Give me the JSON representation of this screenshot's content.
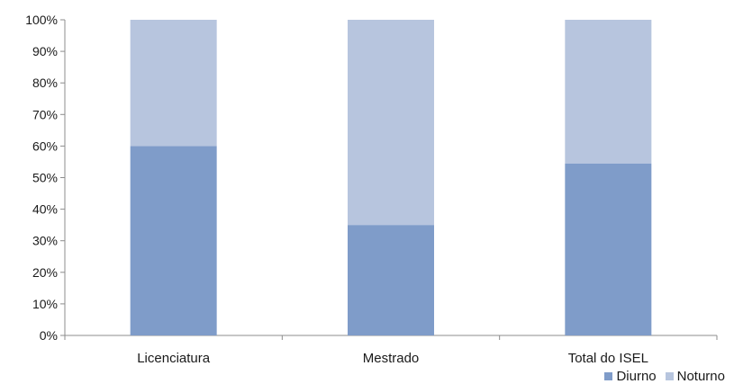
{
  "chart_data": {
    "type": "bar",
    "stacked": true,
    "percent": true,
    "categories": [
      "Licenciatura",
      "Mestrado",
      "Total do ISEL"
    ],
    "series": [
      {
        "name": "Diurno",
        "values": [
          60,
          35,
          54.5
        ],
        "color": "#7f9cc9"
      },
      {
        "name": "Noturno",
        "values": [
          40,
          65,
          45.5
        ],
        "color": "#b7c5de"
      }
    ],
    "yticks": [
      "0%",
      "10%",
      "20%",
      "30%",
      "40%",
      "50%",
      "60%",
      "70%",
      "80%",
      "90%",
      "100%"
    ],
    "ylim": [
      0,
      100
    ],
    "grid": false,
    "legend_position": "bottom-right"
  }
}
